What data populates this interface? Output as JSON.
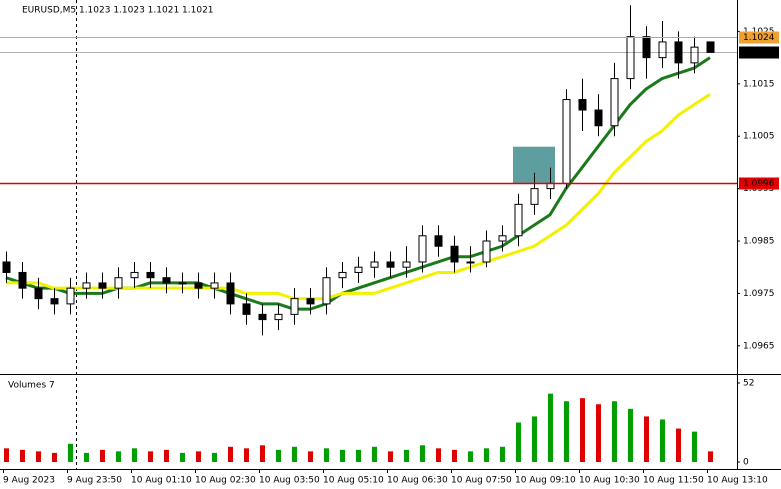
{
  "chart_data": {
    "type": "candlestick",
    "title": "EURUSD,M5 1.1023 1.1023 1.1021 1.1021",
    "categories": [
      "9 Aug 2023",
      null,
      null,
      null,
      "9 Aug 23:50",
      null,
      null,
      null,
      "10 Aug 01:10",
      null,
      null,
      null,
      "10 Aug 02:30",
      null,
      null,
      null,
      "10 Aug 03:50",
      null,
      null,
      null,
      "10 Aug 05:10",
      null,
      null,
      null,
      "10 Aug 06:30",
      null,
      null,
      null,
      "10 Aug 07:50",
      null,
      null,
      null,
      "10 Aug 09:10",
      null,
      null,
      null,
      "10 Aug 10:30",
      null,
      null,
      null,
      "10 Aug 11:50",
      null,
      null,
      null,
      "10 Aug 13:10"
    ],
    "open": [
      1.0981,
      1.0979,
      1.0976,
      1.0974,
      1.0973,
      1.0976,
      1.0977,
      1.0976,
      1.0978,
      1.0979,
      1.0978,
      1.0977,
      1.0977,
      1.0976,
      1.0977,
      1.0973,
      1.0971,
      1.097,
      1.0971,
      1.0974,
      1.0973,
      1.0978,
      1.0979,
      1.098,
      1.0981,
      1.098,
      1.0981,
      1.0986,
      1.0984,
      1.0981,
      1.0981,
      1.0985,
      1.0986,
      1.0992,
      1.0995,
      1.0996,
      1.1012,
      1.101,
      1.1007,
      1.1016,
      1.1024,
      1.102,
      1.1023,
      1.1019,
      1.1023
    ],
    "high": [
      1.0983,
      1.0981,
      1.0978,
      1.0976,
      1.0978,
      1.0979,
      1.0979,
      1.098,
      1.0981,
      1.0981,
      1.098,
      1.0979,
      1.0979,
      1.0979,
      1.0979,
      1.0975,
      1.0973,
      1.0973,
      1.0976,
      1.0976,
      1.098,
      1.0981,
      1.0982,
      1.0983,
      1.0983,
      1.0984,
      1.0988,
      1.0988,
      1.0986,
      1.0984,
      1.0987,
      1.0988,
      1.0994,
      1.0998,
      1.0999,
      1.1014,
      1.1016,
      1.1013,
      1.1019,
      1.103,
      1.1026,
      1.1027,
      1.1025,
      1.1024,
      1.1023
    ],
    "low": [
      1.0977,
      1.0974,
      1.0972,
      1.0971,
      1.0971,
      1.0974,
      1.0974,
      1.0974,
      1.0976,
      1.0976,
      1.0975,
      1.0975,
      1.0974,
      1.0974,
      1.0971,
      1.0969,
      1.0967,
      1.0968,
      1.0969,
      1.0971,
      1.0971,
      1.0976,
      1.0977,
      1.0978,
      1.0978,
      1.0978,
      1.0979,
      1.0982,
      1.0979,
      1.0979,
      1.098,
      1.0983,
      1.0984,
      1.099,
      1.0993,
      1.0995,
      1.1006,
      1.1005,
      1.1005,
      1.1014,
      1.1016,
      1.1018,
      1.1016,
      1.1017,
      1.1021
    ],
    "close": [
      1.0979,
      1.0976,
      1.0974,
      1.0973,
      1.0976,
      1.0977,
      1.0976,
      1.0978,
      1.0979,
      1.0978,
      1.0977,
      1.0977,
      1.0976,
      1.0977,
      1.0973,
      1.0971,
      1.097,
      1.0971,
      1.0974,
      1.0973,
      1.0978,
      1.0979,
      1.098,
      1.0981,
      1.098,
      1.0981,
      1.0986,
      1.0984,
      1.0981,
      1.0981,
      1.0985,
      1.0986,
      1.0992,
      1.0995,
      1.0996,
      1.1012,
      1.101,
      1.1007,
      1.1016,
      1.1024,
      1.102,
      1.1023,
      1.1019,
      1.1022,
      1.1021
    ],
    "indicators": [
      {
        "color": "#1a7a1a",
        "values": [
          1.0978,
          1.0977,
          1.0976,
          1.0976,
          1.0975,
          1.0975,
          1.0975,
          1.0976,
          1.0976,
          1.0977,
          1.0977,
          1.0977,
          1.0977,
          1.0976,
          1.0975,
          1.0974,
          1.0973,
          1.0973,
          1.0972,
          1.0972,
          1.0973,
          1.0975,
          1.0976,
          1.0977,
          1.0978,
          1.0979,
          1.098,
          1.0981,
          1.0982,
          1.0982,
          1.0983,
          1.0984,
          1.0986,
          1.0988,
          1.099,
          1.0995,
          1.0999,
          1.1003,
          1.1007,
          1.1011,
          1.1014,
          1.1016,
          1.1017,
          1.1018,
          1.102
        ]
      },
      {
        "color": "#f2f200",
        "values": [
          1.0977,
          1.0977,
          1.0977,
          1.0976,
          1.0976,
          1.0976,
          1.0976,
          1.0976,
          1.0976,
          1.0976,
          1.0976,
          1.0976,
          1.0976,
          1.0976,
          1.0976,
          1.0975,
          1.0975,
          1.0975,
          1.0974,
          1.0974,
          1.0974,
          1.0975,
          1.0975,
          1.0975,
          1.0976,
          1.0977,
          1.0978,
          1.0979,
          1.0979,
          1.098,
          1.0981,
          1.0982,
          1.0983,
          1.0984,
          1.0986,
          1.0988,
          1.0991,
          1.0994,
          1.0998,
          1.1001,
          1.1004,
          1.1006,
          1.1009,
          1.1011,
          1.1013
        ]
      }
    ],
    "levels": [
      {
        "value": 1.1024,
        "color": "#f0a030"
      },
      {
        "value": 1.1021,
        "color": "#000000"
      },
      {
        "value": 1.0996,
        "color": "#e00000"
      }
    ],
    "zone": {
      "from": 1.0996,
      "to": 1.1003,
      "color": "#5f9ea0"
    },
    "ylim": [
      1.096,
      1.1031
    ],
    "yticks": [
      1.0965,
      1.0975,
      1.0985,
      1.0995,
      1.1005,
      1.1015,
      1.1025
    ],
    "volume": {
      "title": "Volumes 7",
      "values": [
        9,
        8,
        7,
        6,
        12,
        6,
        8,
        7,
        9,
        7,
        8,
        6,
        7,
        6,
        10,
        9,
        11,
        8,
        10,
        7,
        9,
        8,
        8,
        10,
        7,
        8,
        11,
        9,
        8,
        7,
        9,
        10,
        26,
        30,
        45,
        40,
        42,
        38,
        40,
        35,
        30,
        28,
        22,
        20,
        7
      ],
      "up_color": "#00a000",
      "down_color": "#e00000",
      "ylim": [
        0,
        52
      ],
      "yticks": [
        0,
        52
      ]
    }
  }
}
